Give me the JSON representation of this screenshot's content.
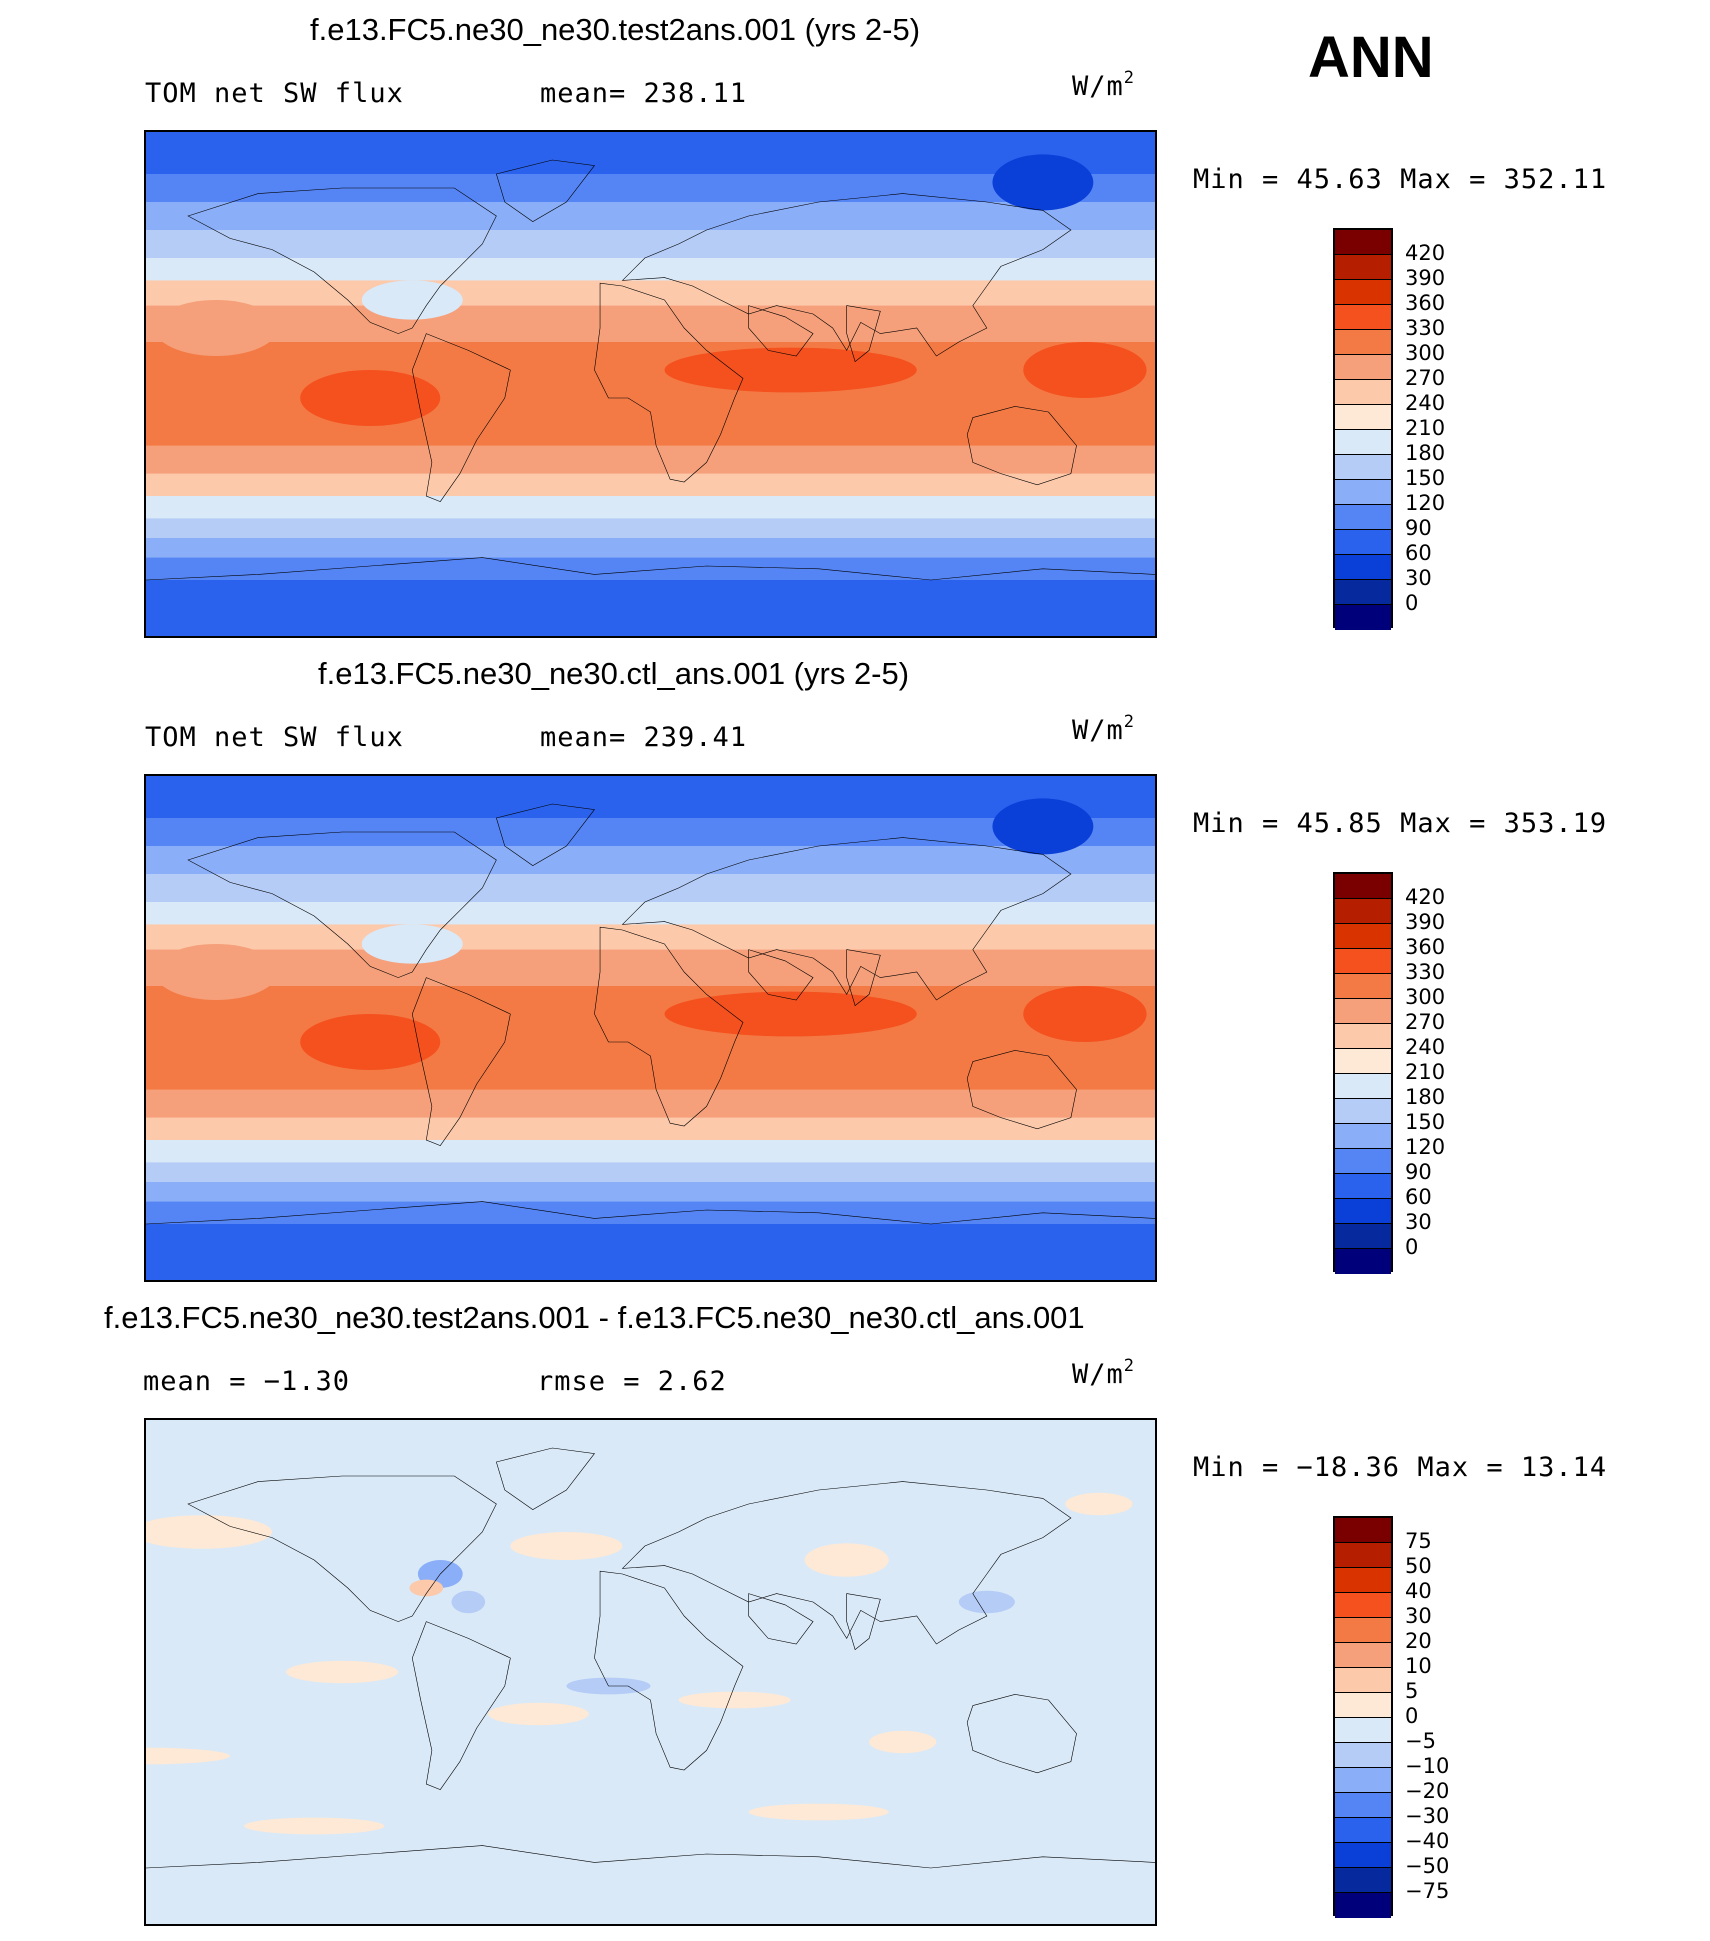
{
  "season": "ANN",
  "chart_data": [
    {
      "type": "heatmap",
      "kind": "global-map",
      "title": "f.e13.FC5.ne30_ne30.test2ans.001 (yrs 2-5)",
      "left_label": "TOM net SW flux",
      "stat_label": "mean= 238.11",
      "units_base": "W/m",
      "units_exp": "2",
      "minmax": "Min =   45.63 Max =  352.11",
      "min": 45.63,
      "max": 352.11,
      "mean": 238.11,
      "colorbar": {
        "ticks": [
          "420",
          "390",
          "360",
          "330",
          "300",
          "270",
          "240",
          "210",
          "180",
          "150",
          "120",
          "90",
          "60",
          "30",
          "0"
        ],
        "colors": [
          "#7a0000",
          "#b51f00",
          "#d93400",
          "#f4511e",
          "#f47a45",
          "#f5a07a",
          "#fcc9ab",
          "#fde9d6",
          "#d9e9f8",
          "#b4ccf6",
          "#8aaef7",
          "#5585f5",
          "#2a62ee",
          "#0a3fd8",
          "#062a9e",
          "#00007a"
        ]
      },
      "lat_bands": [
        {
          "lat": 90,
          "v": 80
        },
        {
          "lat": 75,
          "v": 95
        },
        {
          "lat": 65,
          "v": 125
        },
        {
          "lat": 55,
          "v": 155
        },
        {
          "lat": 45,
          "v": 195
        },
        {
          "lat": 37,
          "v": 240
        },
        {
          "lat": 28,
          "v": 290
        },
        {
          "lat": 15,
          "v": 320
        },
        {
          "lat": 0,
          "v": 310
        },
        {
          "lat": -10,
          "v": 315
        },
        {
          "lat": -22,
          "v": 295
        },
        {
          "lat": -32,
          "v": 255
        },
        {
          "lat": -40,
          "v": 205
        },
        {
          "lat": -48,
          "v": 160
        },
        {
          "lat": -55,
          "v": 125
        },
        {
          "lat": -62,
          "v": 90
        },
        {
          "lat": -70,
          "v": 60
        },
        {
          "lat": -90,
          "v": 55
        }
      ],
      "regions": [
        {
          "lon": -130,
          "lat": 5,
          "rlon": 45,
          "rlat": 8,
          "v": 345
        },
        {
          "lon": -25,
          "lat": 5,
          "rlon": 22,
          "rlat": 10,
          "v": 340
        },
        {
          "lon": 80,
          "lat": -5,
          "rlon": 25,
          "rlat": 10,
          "v": 330
        },
        {
          "lon": -40,
          "lat": 72,
          "rlon": 18,
          "rlat": 10,
          "v": 50
        },
        {
          "lon": 25,
          "lat": 20,
          "rlon": 22,
          "rlat": 10,
          "v": 270
        },
        {
          "lon": 95,
          "lat": 30,
          "rlon": 18,
          "rlat": 7,
          "v": 190
        }
      ]
    },
    {
      "type": "heatmap",
      "kind": "global-map",
      "title": "f.e13.FC5.ne30_ne30.ctl_ans.001 (yrs 2-5)",
      "left_label": "TOM net SW flux",
      "stat_label": "mean= 239.41",
      "units_base": "W/m",
      "units_exp": "2",
      "minmax": "Min =   45.85 Max =  353.19",
      "min": 45.85,
      "max": 353.19,
      "mean": 239.41,
      "colorbar": {
        "ticks": [
          "420",
          "390",
          "360",
          "330",
          "300",
          "270",
          "240",
          "210",
          "180",
          "150",
          "120",
          "90",
          "60",
          "30",
          "0"
        ],
        "colors": [
          "#7a0000",
          "#b51f00",
          "#d93400",
          "#f4511e",
          "#f47a45",
          "#f5a07a",
          "#fcc9ab",
          "#fde9d6",
          "#d9e9f8",
          "#b4ccf6",
          "#8aaef7",
          "#5585f5",
          "#2a62ee",
          "#0a3fd8",
          "#062a9e",
          "#00007a"
        ]
      },
      "lat_bands": [
        {
          "lat": 90,
          "v": 80
        },
        {
          "lat": 75,
          "v": 95
        },
        {
          "lat": 65,
          "v": 125
        },
        {
          "lat": 55,
          "v": 155
        },
        {
          "lat": 45,
          "v": 195
        },
        {
          "lat": 37,
          "v": 242
        },
        {
          "lat": 28,
          "v": 292
        },
        {
          "lat": 15,
          "v": 322
        },
        {
          "lat": 0,
          "v": 312
        },
        {
          "lat": -10,
          "v": 316
        },
        {
          "lat": -22,
          "v": 296
        },
        {
          "lat": -32,
          "v": 256
        },
        {
          "lat": -40,
          "v": 206
        },
        {
          "lat": -48,
          "v": 160
        },
        {
          "lat": -55,
          "v": 125
        },
        {
          "lat": -62,
          "v": 90
        },
        {
          "lat": -70,
          "v": 60
        },
        {
          "lat": -90,
          "v": 55
        }
      ],
      "regions": [
        {
          "lon": -130,
          "lat": 5,
          "rlon": 45,
          "rlat": 8,
          "v": 345
        },
        {
          "lon": -25,
          "lat": 5,
          "rlon": 22,
          "rlat": 10,
          "v": 340
        },
        {
          "lon": 80,
          "lat": -5,
          "rlon": 25,
          "rlat": 10,
          "v": 330
        },
        {
          "lon": -40,
          "lat": 72,
          "rlon": 18,
          "rlat": 10,
          "v": 50
        },
        {
          "lon": 25,
          "lat": 20,
          "rlon": 22,
          "rlat": 10,
          "v": 270
        },
        {
          "lon": 95,
          "lat": 30,
          "rlon": 18,
          "rlat": 7,
          "v": 190
        }
      ]
    },
    {
      "type": "heatmap",
      "kind": "global-map-difference",
      "title": "f.e13.FC5.ne30_ne30.test2ans.001 - f.e13.FC5.ne30_ne30.ctl_ans.001",
      "left_label": "mean =   −1.30",
      "stat_label": "rmse =    2.62",
      "units_base": "W/m",
      "units_exp": "2",
      "minmax": "Min = −18.36 Max =   13.14",
      "min": -18.36,
      "max": 13.14,
      "mean": -1.3,
      "rmse": 2.62,
      "colorbar": {
        "ticks": [
          "75",
          "50",
          "40",
          "30",
          "20",
          "10",
          "5",
          "0",
          "−5",
          "−10",
          "−20",
          "−30",
          "−40",
          "−50",
          "−75"
        ],
        "colors": [
          "#7a0000",
          "#b51f00",
          "#d93400",
          "#f4511e",
          "#f47a45",
          "#f5a07a",
          "#fcc9ab",
          "#fde9d6",
          "#d9e9f8",
          "#b4ccf6",
          "#8aaef7",
          "#5585f5",
          "#2a62ee",
          "#0a3fd8",
          "#062a9e",
          "#00007a"
        ]
      },
      "lat_bands": [],
      "regions": [
        {
          "lon": 105,
          "lat": 35,
          "rlon": 8,
          "rlat": 5,
          "v": -12
        },
        {
          "lon": 115,
          "lat": 25,
          "rlon": 6,
          "rlat": 4,
          "v": -8
        },
        {
          "lon": 100,
          "lat": 30,
          "rlon": 6,
          "rlat": 3,
          "v": 6
        },
        {
          "lon": 20,
          "lat": 50,
          "rlon": 25,
          "rlat": 6,
          "v": 4
        },
        {
          "lon": 150,
          "lat": 45,
          "rlon": 20,
          "rlat": 5,
          "v": 3
        },
        {
          "lon": -110,
          "lat": 40,
          "rlon": 15,
          "rlat": 6,
          "v": 4
        },
        {
          "lon": -60,
          "lat": 25,
          "rlon": 10,
          "rlat": 4,
          "v": -7
        },
        {
          "lon": 70,
          "lat": 0,
          "rlon": 20,
          "rlat": 4,
          "v": 3
        },
        {
          "lon": 140,
          "lat": -15,
          "rlon": 18,
          "rlat": 4,
          "v": 4
        },
        {
          "lon": -150,
          "lat": -10,
          "rlon": 20,
          "rlat": 3,
          "v": 3
        },
        {
          "lon": 0,
          "lat": -30,
          "rlon": 30,
          "rlat": 3,
          "v": 3
        },
        {
          "lon": -120,
          "lat": -50,
          "rlon": 25,
          "rlat": 3,
          "v": 3
        },
        {
          "lon": 60,
          "lat": -55,
          "rlon": 25,
          "rlat": 3,
          "v": 3
        },
        {
          "lon": -20,
          "lat": 60,
          "rlon": 12,
          "rlat": 4,
          "v": 4
        },
        {
          "lon": 165,
          "lat": -5,
          "rlon": 15,
          "rlat": 3,
          "v": -6
        },
        {
          "lon": -90,
          "lat": -25,
          "rlon": 12,
          "rlat": 4,
          "v": 4
        }
      ]
    }
  ]
}
